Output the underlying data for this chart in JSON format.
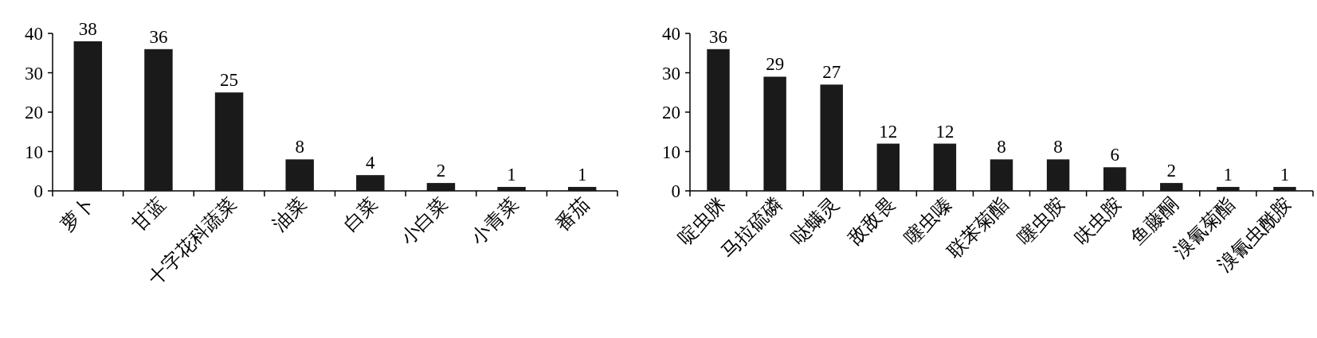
{
  "chart_data": [
    {
      "type": "bar",
      "categories": [
        "萝卜",
        "甘蓝",
        "十字花科蔬菜",
        "油菜",
        "白菜",
        "小白菜",
        "小青菜",
        "番茄"
      ],
      "values": [
        38,
        36,
        25,
        8,
        4,
        2,
        1,
        1
      ],
      "color": "#1a1a1a",
      "ylim": [
        0,
        40
      ],
      "yticks": [
        0,
        10,
        20,
        30,
        40
      ],
      "data_labels": true
    },
    {
      "type": "bar",
      "categories": [
        "啶虫脒",
        "马拉硫磷",
        "哒螨灵",
        "敌敌畏",
        "噻虫嗪",
        "联苯菊酯",
        "噻虫胺",
        "呋虫胺",
        "鱼藤酮",
        "溴氰菊酯",
        "溴氰虫酰胺"
      ],
      "values": [
        36,
        29,
        27,
        12,
        12,
        8,
        8,
        6,
        2,
        1,
        1
      ],
      "color": "#1a1a1a",
      "ylim": [
        0,
        40
      ],
      "yticks": [
        0,
        10,
        20,
        30,
        40
      ],
      "data_labels": true
    }
  ]
}
